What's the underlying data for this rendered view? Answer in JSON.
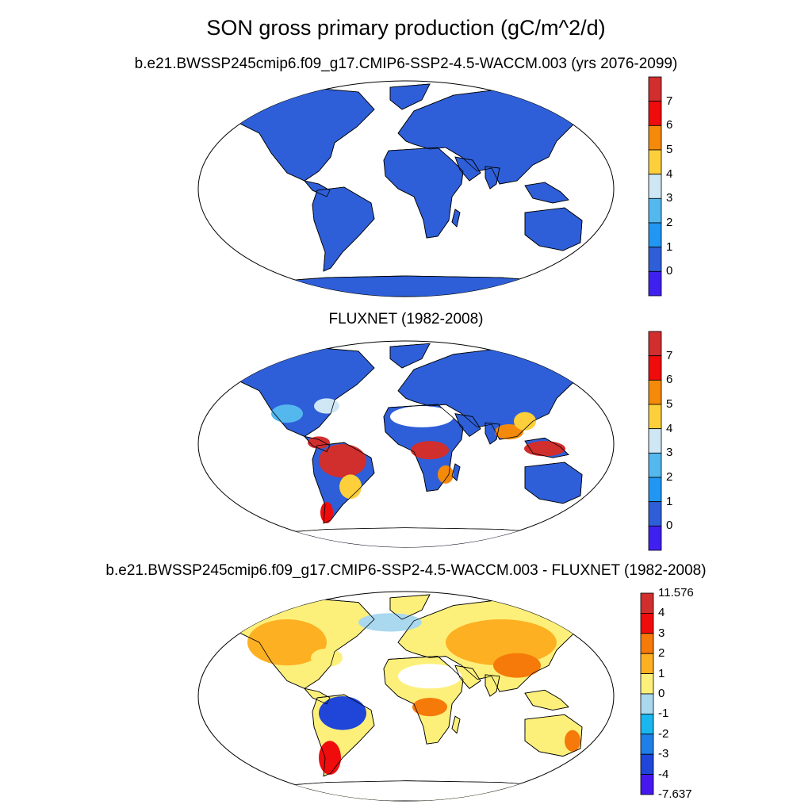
{
  "title": "SON gross primary production (gC/m^2/d)",
  "panels": [
    {
      "id": "model",
      "subtitle": "b.e21.BWSSP245cmip6.f09_g17.CMIP6-SSP2-4.5-WACCM.003 (yrs 2076-2099)",
      "colorbar_labels": [
        "7",
        "6",
        "5",
        "4",
        "3",
        "2",
        "1",
        "0"
      ],
      "colorbar_colors": [
        "#d12e2e",
        "#f00c0c",
        "#f58a0a",
        "#fdcf3b",
        "#cfe6f5",
        "#54b8ee",
        "#2196f3",
        "#2e5fd8",
        "#4020f0"
      ]
    },
    {
      "id": "obs",
      "subtitle": "FLUXNET (1982-2008)",
      "colorbar_labels": [
        "7",
        "6",
        "5",
        "4",
        "3",
        "2",
        "1",
        "0"
      ],
      "colorbar_colors": [
        "#d12e2e",
        "#f00c0c",
        "#f58a0a",
        "#fdcf3b",
        "#cfe6f5",
        "#54b8ee",
        "#2196f3",
        "#2e5fd8",
        "#4020f0"
      ]
    },
    {
      "id": "diff",
      "subtitle": "b.e21.BWSSP245cmip6.f09_g17.CMIP6-SSP2-4.5-WACCM.003 - FLUXNET (1982-2008)",
      "colorbar_labels": [
        "11.576",
        "4",
        "3",
        "2",
        "1",
        "0",
        "-1",
        "-2",
        "-3",
        "-4",
        "-7.637"
      ],
      "colorbar_colors": [
        "#d12e2e",
        "#f00c0c",
        "#f57a0a",
        "#fdb022",
        "#fdf07a",
        "#a9d8ef",
        "#1ab6f0",
        "#1f7fe8",
        "#1f46d8",
        "#4418ee"
      ]
    }
  ]
}
